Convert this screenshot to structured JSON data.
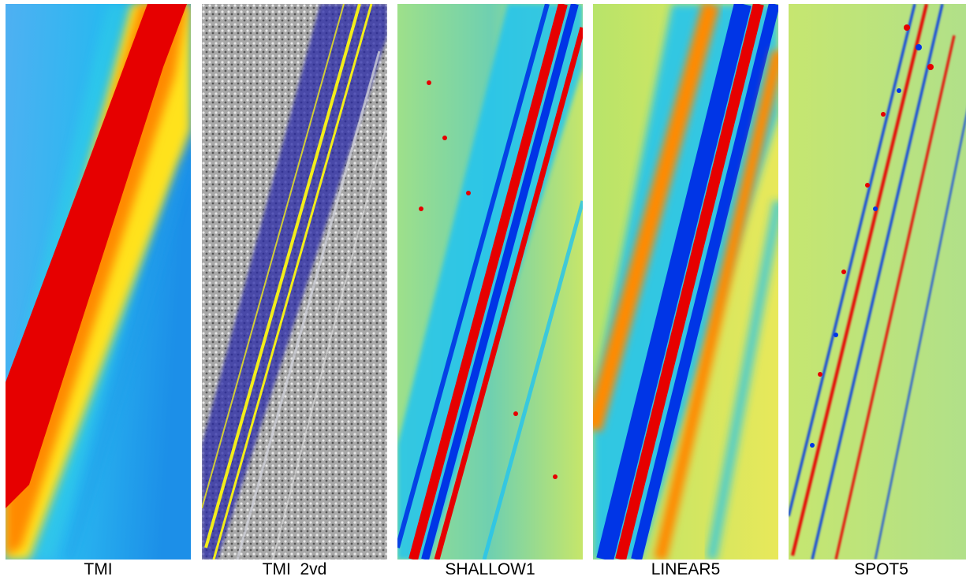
{
  "figure": {
    "panels": [
      {
        "label": "TMI",
        "colormap": "jet",
        "style": "smooth"
      },
      {
        "label": "TMI  2vd",
        "colormap": "grayscale-blue-yellow",
        "style": "speckle"
      },
      {
        "label": "SHALLOW1",
        "colormap": "jet",
        "style": "banded"
      },
      {
        "label": "LINEAR5",
        "colormap": "jet",
        "style": "broad-banded"
      },
      {
        "label": "SPOT5",
        "colormap": "jet",
        "style": "spotty"
      }
    ],
    "colors": {
      "red": "#e60000",
      "orange": "#ff7f00",
      "yellow": "#ffea00",
      "lightgreen": "#a8e07a",
      "cyan": "#23c4f0",
      "blue": "#0035e6",
      "darkblue": "#1a1aa0",
      "gray": "#9a9a9a"
    }
  }
}
